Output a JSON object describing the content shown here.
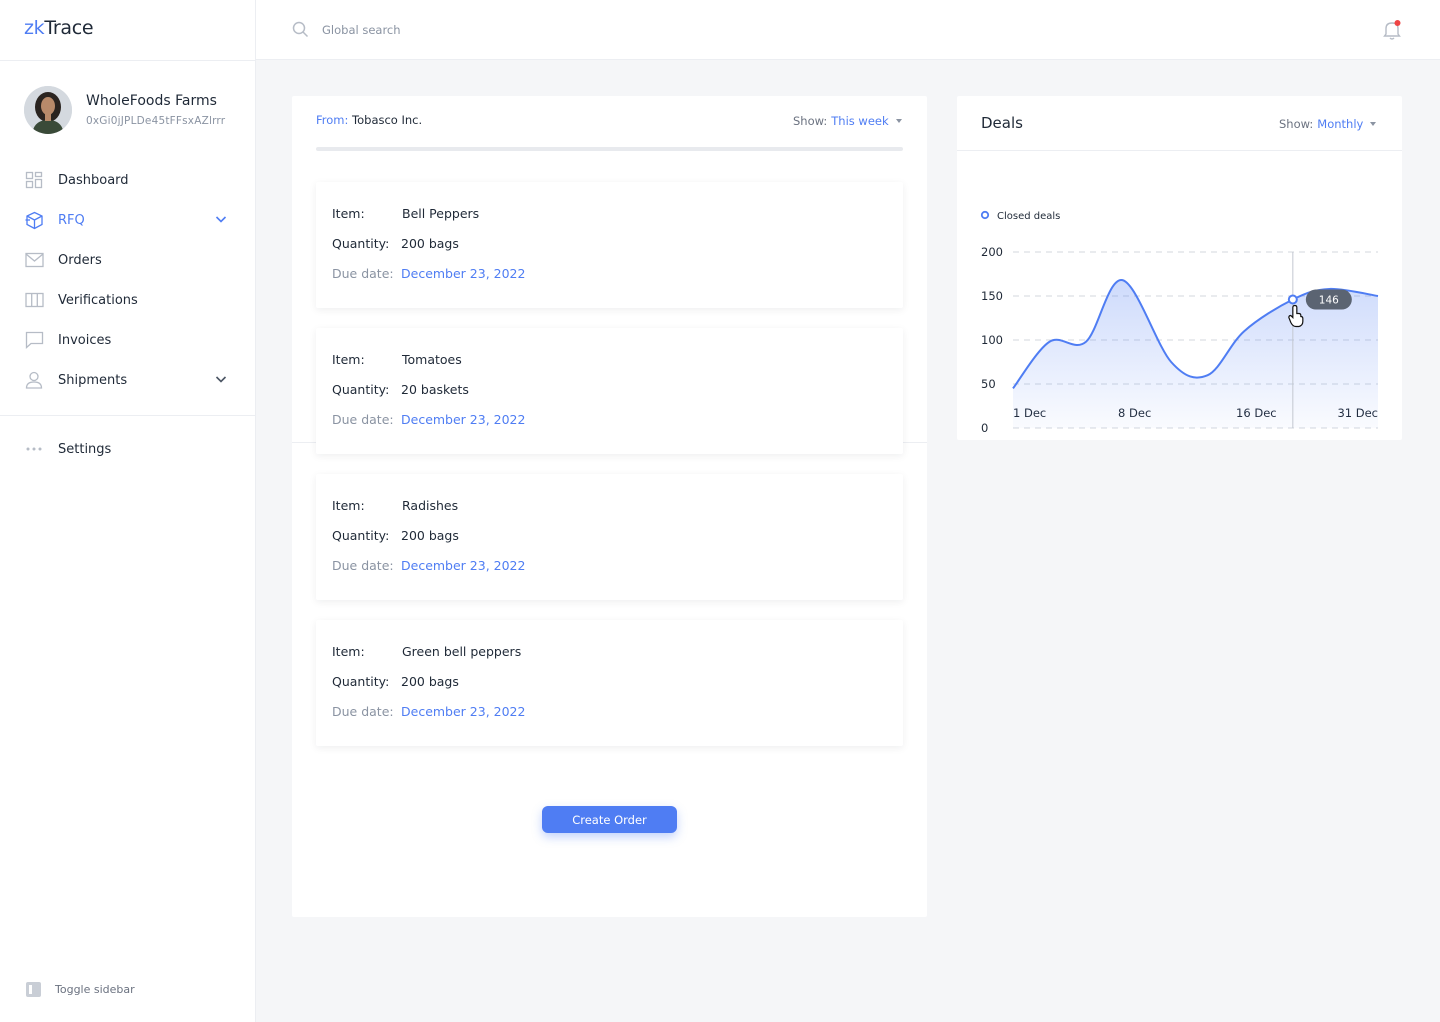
{
  "app": {
    "logo_prefix": "zk",
    "logo_suffix": "Trace"
  },
  "profile": {
    "name": "WholeFoods Farms",
    "address": "0xGi0jJPLDe45tFFsxAZlrrr"
  },
  "nav": {
    "items": [
      {
        "label": "Dashboard",
        "icon": "grid-icon"
      },
      {
        "label": "RFQ",
        "icon": "box-icon",
        "active": true,
        "expandable": true
      },
      {
        "label": "Orders",
        "icon": "mail-icon"
      },
      {
        "label": "Verifications",
        "icon": "columns-icon"
      },
      {
        "label": "Invoices",
        "icon": "chat-icon"
      },
      {
        "label": "Shipments",
        "icon": "user-icon",
        "expandable": true
      }
    ],
    "settings": "Settings",
    "toggle": "Toggle sidebar"
  },
  "search": {
    "placeholder": "Global search",
    "value": ""
  },
  "orders": {
    "from_label": "From:",
    "from_value": "Tobasco Inc.",
    "show_label": "Show:",
    "show_value": "This week",
    "progress_fraction": 0,
    "item_label": "Item:",
    "quantity_label": "Quantity:",
    "due_label": "Due date:",
    "items": [
      {
        "item": "Bell Peppers",
        "quantity": "200 bags",
        "due": "December 23, 2022"
      },
      {
        "item": "Tomatoes",
        "quantity": "20 baskets",
        "due": "December 23, 2022"
      },
      {
        "item": "Radishes",
        "quantity": "200 bags",
        "due": "December 23, 2022"
      },
      {
        "item": "Green bell peppers",
        "quantity": "200 bags",
        "due": "December 23, 2022"
      }
    ],
    "create_button": "Create Order"
  },
  "deals": {
    "title": "Deals",
    "show_label": "Show:",
    "show_value": "Monthly",
    "tooltip": "146",
    "colors": {
      "accent": "#4f7df3",
      "tooltip_bg": "#5b6472"
    }
  },
  "chart_data": {
    "type": "area",
    "title": "",
    "legend": [
      "Closed deals"
    ],
    "legend_position": "top-left",
    "grid": true,
    "ylim": [
      0,
      200
    ],
    "yticks": [
      0,
      50,
      100,
      150,
      200
    ],
    "xtick_labels": [
      "1 Dec",
      "8 Dec",
      "16 Dec",
      "31 Dec"
    ],
    "series": [
      {
        "name": "Closed deals",
        "x": [
          1,
          4,
          7,
          10,
          14,
          17,
          20,
          24,
          27,
          31
        ],
        "values": [
          45,
          98,
          98,
          168,
          75,
          60,
          110,
          146,
          158,
          150
        ]
      }
    ],
    "highlight": {
      "x": 24,
      "value": 146
    }
  }
}
